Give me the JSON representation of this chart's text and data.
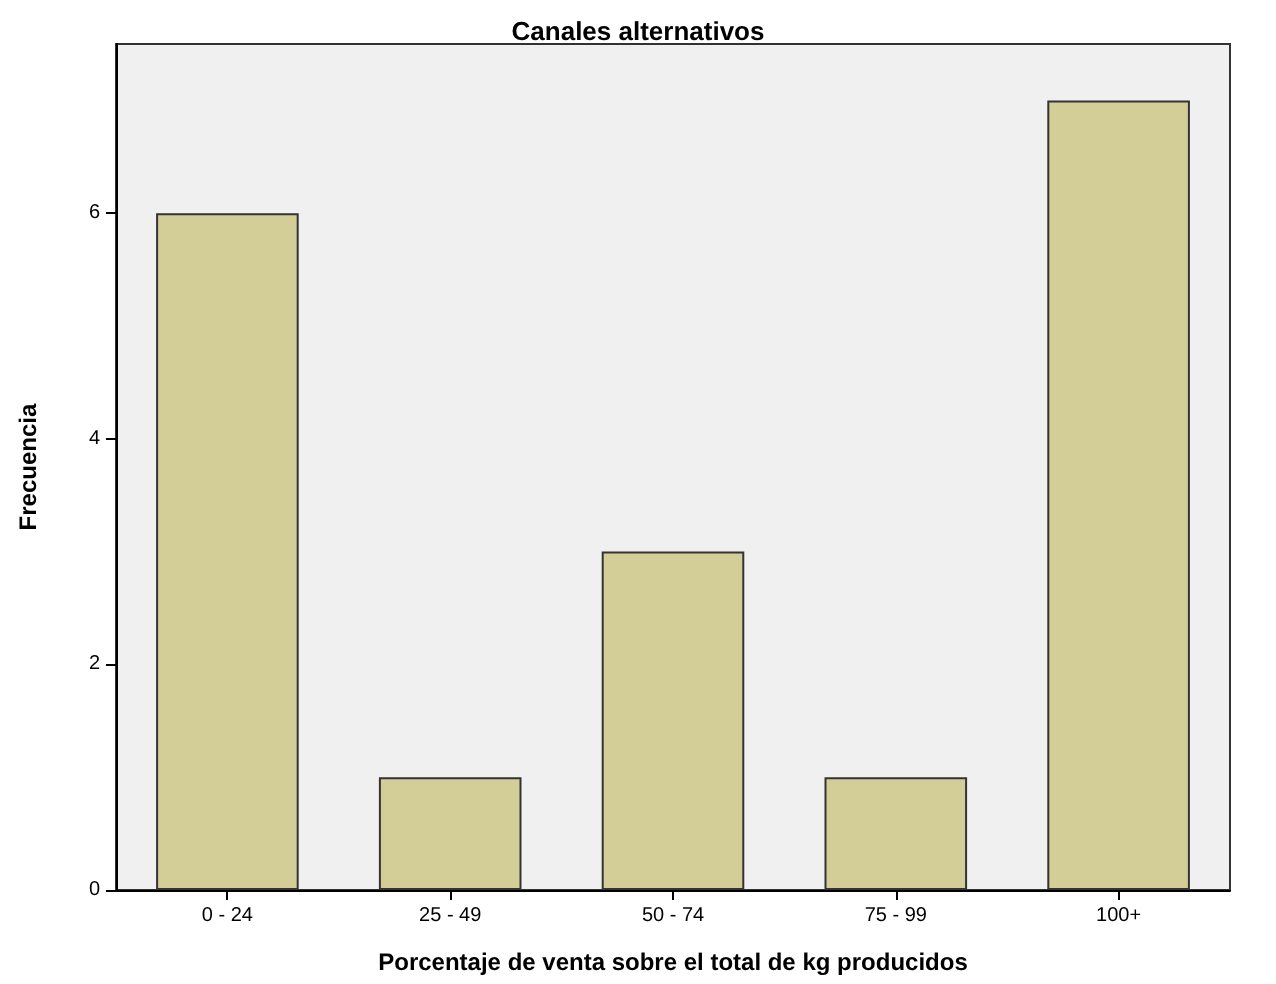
{
  "chart_data": {
    "type": "bar",
    "title": "Canales alternativos",
    "xlabel": "Porcentaje de venta sobre el total de kg producidos",
    "ylabel": "Frecuencia",
    "categories": [
      "0 - 24",
      "25 - 49",
      "50 - 74",
      "75 - 99",
      "100+"
    ],
    "values": [
      6,
      1,
      3,
      1,
      7
    ],
    "color": "#d3ce97",
    "ylim": [
      0,
      7.5
    ],
    "yticks": [
      0,
      2,
      4,
      6
    ],
    "grid": false
  }
}
